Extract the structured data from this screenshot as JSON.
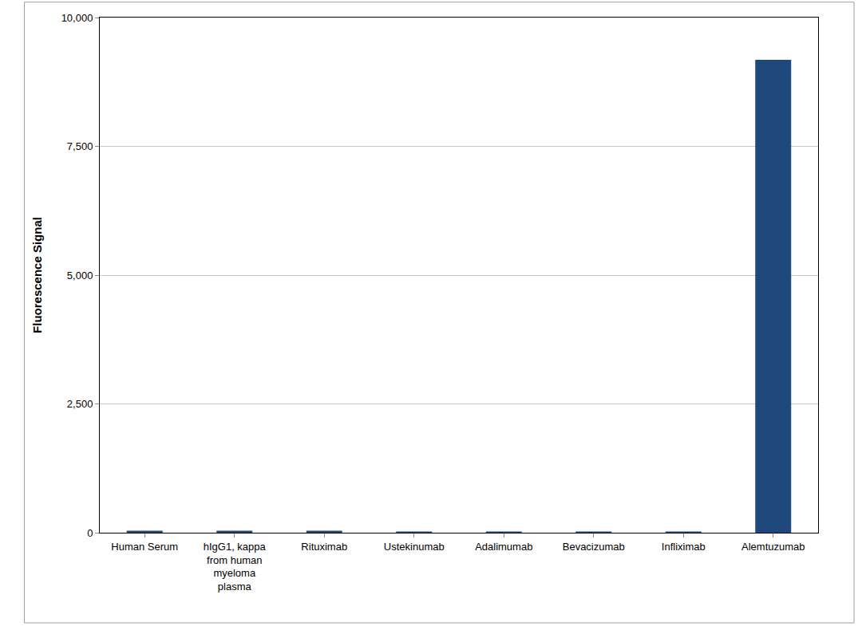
{
  "chart_data": {
    "type": "bar",
    "y_label": "Fluorescence Signal",
    "categories": [
      "Human Serum",
      "hIgG1, kappa from human myeloma plasma",
      "Rituximab",
      "Ustekinumab",
      "Adalimumab",
      "Bevacizumab",
      "Infliximab",
      "Alemtuzumab"
    ],
    "values": [
      40,
      40,
      40,
      25,
      25,
      25,
      25,
      9180
    ],
    "color": "#1f497d",
    "ylim": [
      0,
      10000
    ],
    "yticks": [
      0,
      {
        "value": 2500,
        "label": "2,500"
      },
      {
        "value": 5000,
        "label": "5,000"
      },
      {
        "value": 7500,
        "label": "7,500"
      },
      {
        "value": 10000,
        "label": "10,000"
      }
    ],
    "grid": true
  }
}
